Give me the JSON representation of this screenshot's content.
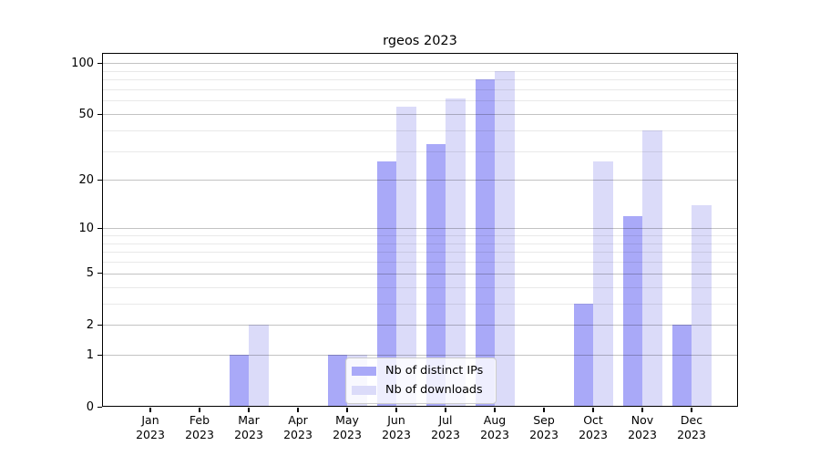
{
  "figure": {
    "title": "rgeos 2023"
  },
  "chart_data": {
    "type": "bar",
    "title": "rgeos 2023",
    "y_scale": "log1p",
    "categories": [
      "Jan",
      "Feb",
      "Mar",
      "Apr",
      "May",
      "Jun",
      "Jul",
      "Aug",
      "Sep",
      "Oct",
      "Nov",
      "Dec"
    ],
    "category_year": "2023",
    "series": [
      {
        "name": "Nb of distinct IPs",
        "color": "#a9a9f8",
        "values": [
          0,
          0,
          1,
          0,
          1,
          26,
          33,
          80,
          0,
          3,
          12,
          2
        ]
      },
      {
        "name": "Nb of downloads",
        "color": "#dbdbf9",
        "values": [
          0,
          0,
          2,
          0,
          1,
          55,
          62,
          90,
          0,
          26,
          40,
          14
        ]
      }
    ],
    "ylim": [
      0,
      115
    ],
    "yticks_major": [
      0,
      1,
      2,
      5,
      10,
      20,
      50,
      100
    ],
    "yticks_minor": [
      3,
      4,
      6,
      7,
      8,
      9,
      30,
      40,
      60,
      70,
      80,
      90
    ],
    "grid": true,
    "legend_position": "lower center"
  },
  "colors": {
    "background": "#ffffff",
    "spine": "#000000",
    "bar_ips": "#a9a9f8",
    "bar_downloads": "#dbdbf9",
    "grid_major": "#c3c3c3",
    "grid_minor": "#eaeaea",
    "legend_border": "#cccccc"
  }
}
